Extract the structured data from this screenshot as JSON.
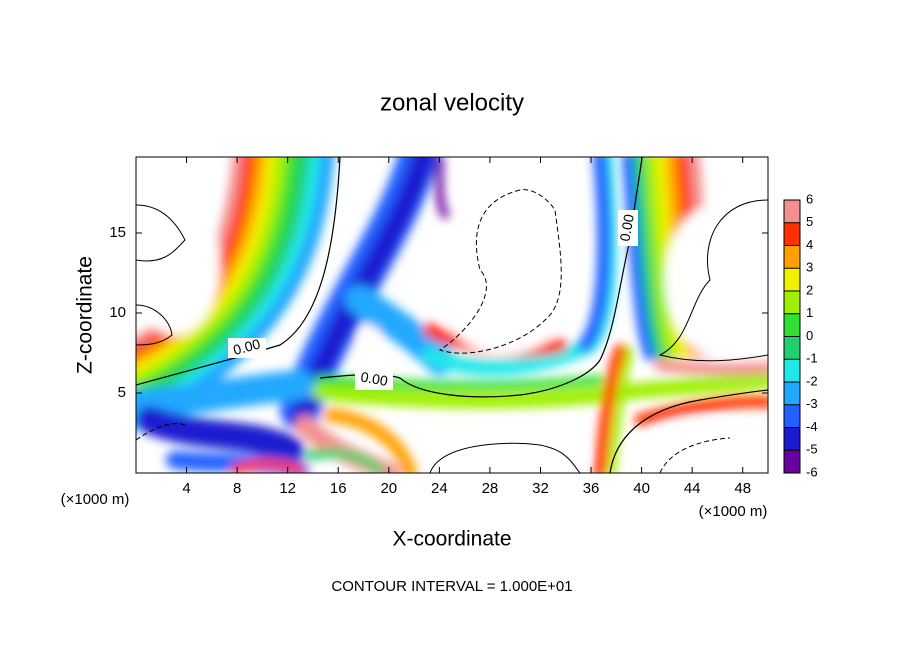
{
  "chart_data": {
    "type": "contour",
    "title": "zonal velocity",
    "x_label": "X-coordinate",
    "y_label": "Z-coordinate",
    "x_unit": "(×1000 m)",
    "y_unit": "(×1000 m)",
    "xlim": [
      0,
      50
    ],
    "xticks": [
      4,
      8,
      12,
      16,
      20,
      24,
      28,
      32,
      36,
      40,
      44,
      48
    ],
    "ylim": [
      0,
      19.75
    ],
    "yticks": [
      5,
      10,
      15
    ],
    "colorbar": {
      "levels": [
        -6,
        -5,
        -4,
        -3,
        -2,
        -1,
        0,
        1,
        2,
        3,
        4,
        5,
        6
      ],
      "colors": [
        "#6a00a0",
        "#1a1ad0",
        "#2060ff",
        "#20a8ff",
        "#20e8e8",
        "#20d070",
        "#30e030",
        "#a0f000",
        "#f0f000",
        "#ffa000",
        "#ff3000",
        "#f49090"
      ]
    },
    "contour_labels": [
      "0.00",
      "0.00",
      "0.00"
    ],
    "annotation": "CONTOUR INTERVAL = 1.000E+01"
  }
}
